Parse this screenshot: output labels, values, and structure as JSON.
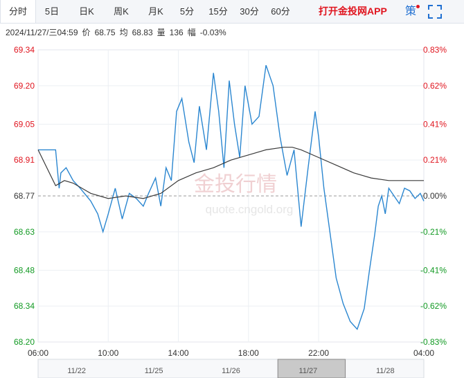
{
  "tabs": [
    {
      "label": "分时",
      "active": true
    },
    {
      "label": "5日"
    },
    {
      "label": "日K"
    },
    {
      "label": "周K"
    },
    {
      "label": "月K"
    },
    {
      "label": "5分"
    },
    {
      "label": "15分"
    },
    {
      "label": "30分"
    },
    {
      "label": "60分"
    }
  ],
  "app_link": "打开金投网APP",
  "strategy_label": "策",
  "icons": {
    "fullscreen": "fullscreen-icon",
    "notification": "red-dot"
  },
  "info": {
    "datetime": "2024/11/27/三04:59",
    "price_label": "价",
    "price": "68.75",
    "avg_label": "均",
    "avg": "68.83",
    "volume_label": "量",
    "volume": "136",
    "change_label": "幅",
    "change": "-0.03%"
  },
  "watermark": {
    "text": "金投行情",
    "url": "quote.cngold.org"
  },
  "colors": {
    "price_line": "#2a86d0",
    "avg_line": "#3a3a3a",
    "up": "#e0141e",
    "down": "#119922",
    "base": "#333333"
  },
  "chart_data": {
    "type": "line",
    "base_price": 68.77,
    "ylim": [
      68.2,
      69.34
    ],
    "y_ticks": [
      "69.34",
      "69.20",
      "69.05",
      "68.91",
      "68.77",
      "68.63",
      "68.48",
      "68.34",
      "68.20"
    ],
    "pct_ticks": [
      "0.83%",
      "0.62%",
      "0.41%",
      "0.21%",
      "0.00%",
      "-0.21%",
      "-0.41%",
      "-0.62%",
      "-0.83%"
    ],
    "x_ticks": [
      "06:00",
      "10:00",
      "14:00",
      "18:00",
      "22:00",
      "04:00"
    ],
    "x_range_hours": [
      0,
      22
    ],
    "series": [
      {
        "name": "价",
        "x": [
          0,
          1.0,
          1.2,
          1.3,
          1.6,
          2.0,
          2.4,
          3.0,
          3.4,
          3.7,
          4.0,
          4.4,
          4.8,
          5.2,
          5.6,
          6.0,
          6.3,
          6.7,
          7.0,
          7.3,
          7.6,
          7.9,
          8.2,
          8.6,
          8.9,
          9.2,
          9.6,
          10.0,
          10.3,
          10.6,
          10.9,
          11.2,
          11.5,
          11.8,
          12.2,
          12.6,
          13.0,
          13.4,
          13.8,
          14.2,
          14.6,
          15.0,
          15.4,
          15.8,
          16.0,
          16.3,
          16.6,
          17.0,
          17.4,
          17.8,
          18.2,
          18.6,
          18.9,
          19.2,
          19.4,
          19.6,
          19.8,
          20.0,
          20.3,
          20.6,
          20.9,
          21.2,
          21.5,
          21.8,
          22.0
        ],
        "y": [
          68.95,
          68.95,
          68.8,
          68.86,
          68.88,
          68.83,
          68.8,
          68.75,
          68.7,
          68.63,
          68.7,
          68.8,
          68.68,
          68.78,
          68.76,
          68.73,
          68.78,
          68.84,
          68.73,
          68.88,
          68.83,
          69.1,
          69.15,
          68.98,
          68.9,
          69.12,
          68.95,
          69.25,
          69.1,
          68.88,
          69.22,
          69.05,
          68.92,
          69.2,
          69.05,
          69.08,
          69.28,
          69.2,
          69.0,
          68.85,
          68.95,
          68.65,
          68.88,
          69.1,
          69.0,
          68.8,
          68.65,
          68.45,
          68.35,
          68.28,
          68.25,
          68.33,
          68.48,
          68.62,
          68.73,
          68.77,
          68.7,
          68.8,
          68.77,
          68.74,
          68.8,
          68.79,
          68.76,
          68.78,
          68.75
        ]
      },
      {
        "name": "均",
        "x": [
          0,
          1.0,
          1.5,
          2.0,
          3.0,
          4.0,
          5.0,
          6.0,
          7.0,
          8.0,
          9.0,
          10.0,
          11.0,
          12.0,
          13.0,
          14.0,
          14.5,
          15.0,
          16.0,
          17.0,
          18.0,
          19.0,
          20.0,
          21.0,
          22.0
        ],
        "y": [
          68.95,
          68.81,
          68.83,
          68.82,
          68.78,
          68.76,
          68.77,
          68.76,
          68.78,
          68.83,
          68.86,
          68.88,
          68.91,
          68.93,
          68.95,
          68.96,
          68.96,
          68.95,
          68.92,
          68.89,
          68.86,
          68.84,
          68.83,
          68.83,
          68.83
        ]
      }
    ],
    "navigator": {
      "labels": [
        "11/22",
        "11/25",
        "11/26",
        "11/27",
        "11/28"
      ],
      "selected": "11/27"
    }
  }
}
